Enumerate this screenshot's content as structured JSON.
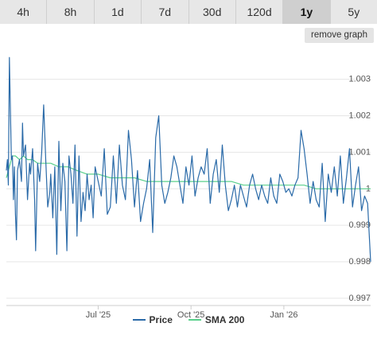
{
  "tabs": [
    {
      "label": "4h",
      "active": false
    },
    {
      "label": "8h",
      "active": false
    },
    {
      "label": "1d",
      "active": false
    },
    {
      "label": "7d",
      "active": false
    },
    {
      "label": "30d",
      "active": false
    },
    {
      "label": "120d",
      "active": false
    },
    {
      "label": "1y",
      "active": true
    },
    {
      "label": "5y",
      "active": false
    }
  ],
  "remove_graph_label": "remove graph",
  "colors": {
    "price": "#2a6aa8",
    "sma": "#5ad08c",
    "grid": "#e6e6e6",
    "axis_text": "#555555"
  },
  "chart_data": {
    "type": "line",
    "title": "",
    "xlabel": "",
    "ylabel": "",
    "ylim": [
      0.9968,
      1.0038
    ],
    "xlim": [
      "2025-04-01",
      "2026-03-28"
    ],
    "y_ticks": [
      1.003,
      1.002,
      1.001,
      1,
      0.999,
      0.998,
      0.997
    ],
    "y_tick_labels": [
      "1.003",
      "1.002",
      "1.001",
      "1",
      "0.999",
      "0.998",
      "0.997"
    ],
    "x_ticks": [
      "2025-07-01",
      "2025-10-01",
      "2026-01-01"
    ],
    "x_tick_labels": [
      "Jul '25",
      "Oct '25",
      "Jan '26"
    ],
    "grid": true,
    "legend_position": "bottom",
    "series": [
      {
        "name": "Price",
        "x": [
          "2025-04-01",
          "2025-04-02",
          "2025-04-03",
          "2025-04-04",
          "2025-04-06",
          "2025-04-07",
          "2025-04-08",
          "2025-04-09",
          "2025-04-10",
          "2025-04-11",
          "2025-04-12",
          "2025-04-14",
          "2025-04-16",
          "2025-04-17",
          "2025-04-18",
          "2025-04-20",
          "2025-04-22",
          "2025-04-24",
          "2025-04-25",
          "2025-04-27",
          "2025-04-29",
          "2025-04-30",
          "2025-05-02",
          "2025-05-04",
          "2025-05-06",
          "2025-05-08",
          "2025-05-10",
          "2025-05-12",
          "2025-05-14",
          "2025-05-15",
          "2025-05-17",
          "2025-05-19",
          "2025-05-21",
          "2025-05-23",
          "2025-05-25",
          "2025-05-27",
          "2025-05-29",
          "2025-05-31",
          "2025-06-02",
          "2025-06-04",
          "2025-06-06",
          "2025-06-08",
          "2025-06-10",
          "2025-06-12",
          "2025-06-14",
          "2025-06-16",
          "2025-06-18",
          "2025-06-20",
          "2025-06-22",
          "2025-06-24",
          "2025-06-26",
          "2025-06-28",
          "2025-07-01",
          "2025-07-04",
          "2025-07-07",
          "2025-07-10",
          "2025-07-13",
          "2025-07-16",
          "2025-07-19",
          "2025-07-22",
          "2025-07-25",
          "2025-07-28",
          "2025-07-31",
          "2025-08-03",
          "2025-08-06",
          "2025-08-09",
          "2025-08-12",
          "2025-08-15",
          "2025-08-18",
          "2025-08-21",
          "2025-08-24",
          "2025-08-27",
          "2025-08-30",
          "2025-09-02",
          "2025-09-05",
          "2025-09-08",
          "2025-09-11",
          "2025-09-14",
          "2025-09-17",
          "2025-09-20",
          "2025-09-23",
          "2025-09-26",
          "2025-09-29",
          "2025-10-02",
          "2025-10-05",
          "2025-10-08",
          "2025-10-11",
          "2025-10-14",
          "2025-10-17",
          "2025-10-20",
          "2025-10-23",
          "2025-10-26",
          "2025-10-29",
          "2025-11-01",
          "2025-11-04",
          "2025-11-07",
          "2025-11-10",
          "2025-11-13",
          "2025-11-16",
          "2025-11-19",
          "2025-11-22",
          "2025-11-25",
          "2025-11-28",
          "2025-12-01",
          "2025-12-04",
          "2025-12-07",
          "2025-12-10",
          "2025-12-13",
          "2025-12-16",
          "2025-12-19",
          "2025-12-22",
          "2025-12-25",
          "2025-12-28",
          "2025-12-31",
          "2026-01-03",
          "2026-01-06",
          "2026-01-09",
          "2026-01-12",
          "2026-01-15",
          "2026-01-18",
          "2026-01-21",
          "2026-01-24",
          "2026-01-27",
          "2026-01-30",
          "2026-02-02",
          "2026-02-05",
          "2026-02-08",
          "2026-02-11",
          "2026-02-14",
          "2026-02-17",
          "2026-02-20",
          "2026-02-23",
          "2026-02-26",
          "2026-03-01",
          "2026-03-04",
          "2026-03-07",
          "2026-03-10",
          "2026-03-13",
          "2026-03-16",
          "2026-03-19",
          "2026-03-22",
          "2026-03-25",
          "2026-03-28"
        ],
        "values": [
          1.0005,
          1.0008,
          1.0001,
          1.0036,
          1.0008,
          1.0009,
          0.9997,
          1.0006,
          0.9993,
          0.9986,
          1.0005,
          1.0008,
          1.0002,
          1.0018,
          1.0009,
          1.0012,
          0.9997,
          1.0007,
          1.0004,
          1.0011,
          0.9997,
          0.9983,
          1.0007,
          1.0002,
          1.001,
          1.0023,
          1.0008,
          0.9995,
          0.9999,
          1.0004,
          0.9992,
          1.0006,
          0.9982,
          1.0013,
          0.9994,
          1.0007,
          1.0002,
          0.9983,
          1.0009,
          1.0004,
          0.9996,
          1.0012,
          0.9987,
          1.0009,
          0.9991,
          0.9999,
          0.9994,
          1.0004,
          0.9997,
          1.0001,
          0.9992,
          1.0006,
          1.0002,
          0.9998,
          1.0011,
          0.9993,
          0.9995,
          1.0009,
          0.9996,
          1.0012,
          1.0001,
          0.9997,
          1.0016,
          1.0008,
          0.9995,
          1.0005,
          0.9991,
          0.9996,
          1.0,
          1.0008,
          0.9988,
          1.0014,
          1.002,
          1.0001,
          0.9996,
          0.9999,
          1.0003,
          1.0009,
          1.0006,
          1.0001,
          0.9996,
          1.0006,
          1.0001,
          1.0009,
          0.9998,
          1.0003,
          1.0006,
          1.0004,
          1.0011,
          0.9996,
          1.0004,
          1.0008,
          0.9999,
          1.0012,
          1.0001,
          0.9994,
          0.9997,
          1.0001,
          0.9995,
          1.0001,
          0.9998,
          0.9995,
          1.0001,
          1.0004,
          1.0,
          0.9997,
          1.0001,
          0.9998,
          0.9996,
          1.0003,
          0.9998,
          0.9996,
          1.0004,
          1.0002,
          0.9999,
          1.0,
          0.9998,
          1.0001,
          1.0003,
          1.0016,
          1.0011,
          1.0004,
          0.9996,
          1.0002,
          0.9997,
          0.9995,
          1.0007,
          0.9991,
          1.0004,
          0.9999,
          1.0006,
          0.9998,
          1.0009,
          0.9996,
          1.0003,
          1.0011,
          0.9995,
          1.0001,
          1.0006,
          0.9994,
          0.9998,
          0.9996,
          0.998
        ]
      },
      {
        "name": "SMA 200",
        "x": [
          "2025-04-01",
          "2025-04-04",
          "2025-04-07",
          "2025-04-10",
          "2025-04-14",
          "2025-04-18",
          "2025-04-22",
          "2025-04-27",
          "2025-05-02",
          "2025-05-08",
          "2025-05-15",
          "2025-05-23",
          "2025-06-01",
          "2025-06-10",
          "2025-06-20",
          "2025-07-01",
          "2025-07-13",
          "2025-07-25",
          "2025-08-06",
          "2025-08-18",
          "2025-08-30",
          "2025-09-11",
          "2025-09-23",
          "2025-10-05",
          "2025-10-17",
          "2025-10-29",
          "2025-11-10",
          "2025-11-22",
          "2025-12-04",
          "2025-12-16",
          "2025-12-28",
          "2026-01-09",
          "2026-01-21",
          "2026-02-02",
          "2026-02-14",
          "2026-02-26",
          "2026-03-10",
          "2026-03-22",
          "2026-03-28"
        ],
        "values": [
          1.0003,
          1.0006,
          1.0009,
          1.0009,
          1.0008,
          1.0009,
          1.0008,
          1.0008,
          1.0007,
          1.0007,
          1.0007,
          1.0006,
          1.0006,
          1.0005,
          1.0004,
          1.0004,
          1.0003,
          1.0003,
          1.0003,
          1.0002,
          1.0002,
          1.0002,
          1.0002,
          1.0002,
          1.0002,
          1.0002,
          1.0002,
          1.0001,
          1.0001,
          1.0001,
          1.0001,
          1.0001,
          1.0001,
          1.0,
          1.0,
          1.0,
          1.0,
          1.0,
          1.0
        ]
      }
    ]
  }
}
